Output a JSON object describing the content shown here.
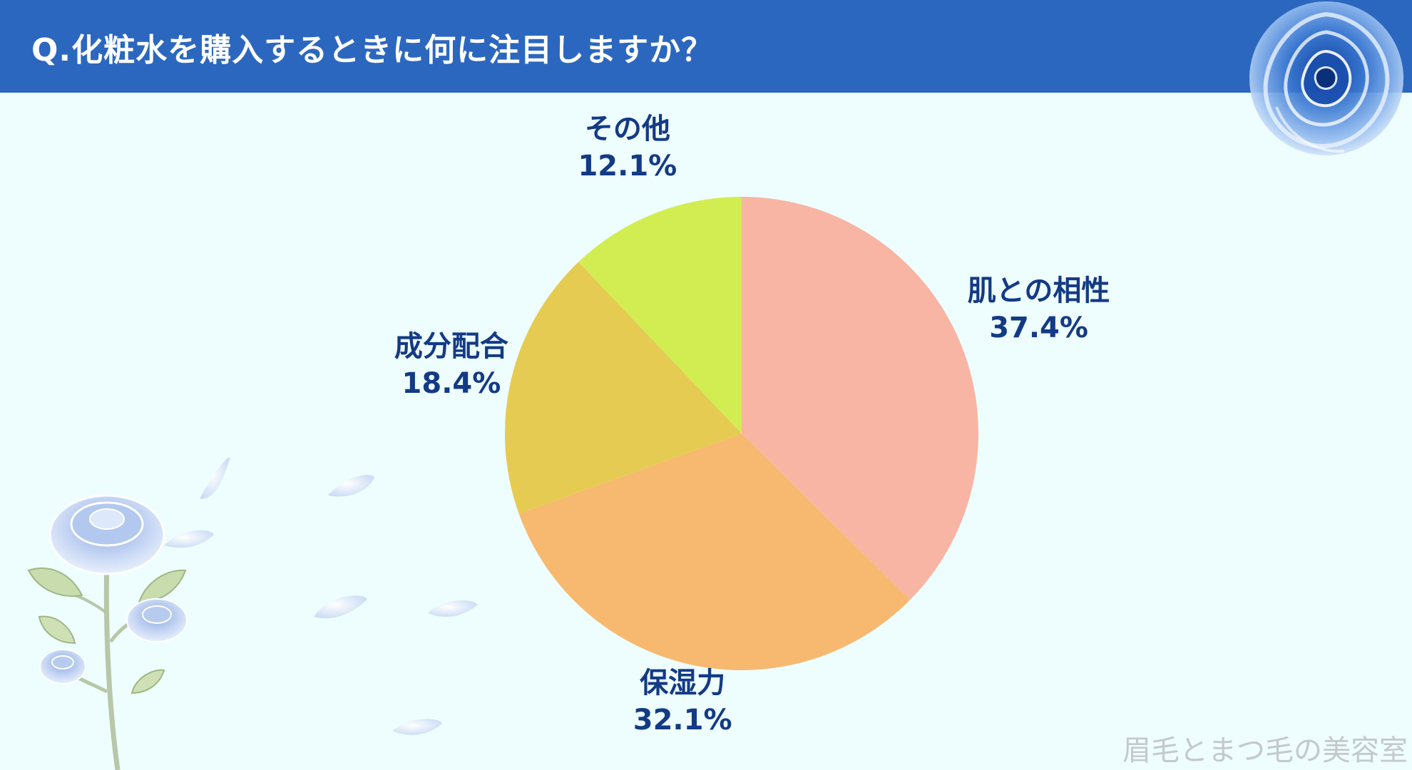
{
  "header": {
    "title": "Q.化粧水を購入するときに何に注目しますか？"
  },
  "chart_data": {
    "type": "pie",
    "categories": [
      "肌との相性",
      "保湿力",
      "成分配合",
      "その他"
    ],
    "values": [
      37.4,
      32.1,
      18.4,
      12.1
    ],
    "value_labels": [
      "37.4%",
      "32.1%",
      "18.4%",
      "12.1%"
    ],
    "colors": [
      "#f8b5a3",
      "#f6b96f",
      "#e6cb52",
      "#d2ed51"
    ],
    "start": "12 o'clock, clockwise",
    "label_color": "#133a84"
  },
  "decor": {
    "top_right": "blue-rose-icon",
    "bottom_left": "blue-rose-branch-icon",
    "petals": "petal-icon"
  },
  "watermark": "眉毛とまつ毛の美容室"
}
